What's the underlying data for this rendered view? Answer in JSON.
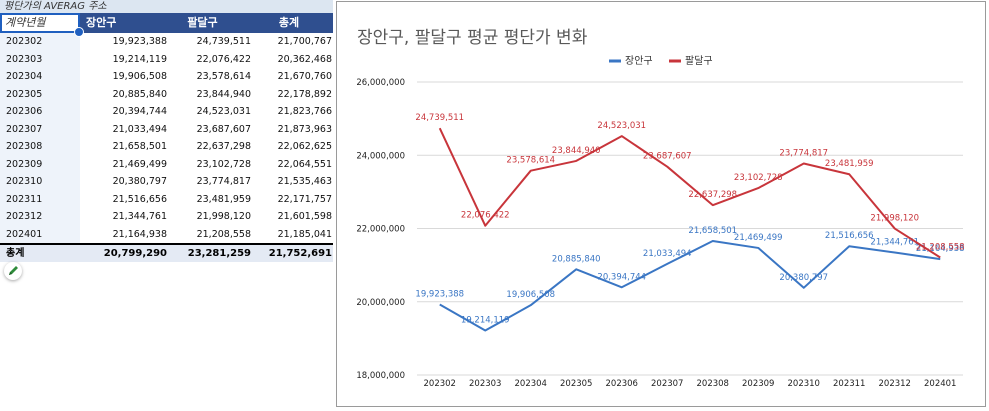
{
  "pivot": {
    "title": "평단가의 AVERAG 주소",
    "headers": [
      "계약년월",
      "장안구",
      "팔달구",
      "총계"
    ],
    "rows": [
      [
        "202302",
        "19,923,388",
        "24,739,511",
        "21,700,767"
      ],
      [
        "202303",
        "19,214,119",
        "22,076,422",
        "20,362,468"
      ],
      [
        "202304",
        "19,906,508",
        "23,578,614",
        "21,670,760"
      ],
      [
        "202305",
        "20,885,840",
        "23,844,940",
        "22,178,892"
      ],
      [
        "202306",
        "20,394,744",
        "24,523,031",
        "21,823,766"
      ],
      [
        "202307",
        "21,033,494",
        "23,687,607",
        "21,873,963"
      ],
      [
        "202308",
        "21,658,501",
        "22,637,298",
        "22,062,625"
      ],
      [
        "202309",
        "21,469,499",
        "23,102,728",
        "22,064,551"
      ],
      [
        "202310",
        "20,380,797",
        "23,774,817",
        "21,535,463"
      ],
      [
        "202311",
        "21,516,656",
        "23,481,959",
        "22,171,757"
      ],
      [
        "202312",
        "21,344,761",
        "21,998,120",
        "21,601,598"
      ],
      [
        "202401",
        "21,164,938",
        "21,208,558",
        "21,185,041"
      ]
    ],
    "total": [
      "총계",
      "20,799,290",
      "23,281,259",
      "21,752,691"
    ]
  },
  "chart_data": {
    "type": "line",
    "title": "장안구, 팔달구 평균 평단가 변화",
    "categories": [
      "202302",
      "202303",
      "202304",
      "202305",
      "202306",
      "202307",
      "202308",
      "202309",
      "202310",
      "202311",
      "202312",
      "202401"
    ],
    "series": [
      {
        "name": "장안구",
        "color": "#3a76c4",
        "values": [
          19923388,
          19214119,
          19906508,
          20885840,
          20394744,
          21033494,
          21658501,
          21469499,
          20380797,
          21516656,
          21344761,
          21164938
        ],
        "labels": [
          "19,923,388",
          "19,214,119",
          "19,906,508",
          "20,885,840",
          "20,394,744",
          "21,033,494",
          "21,658,501",
          "21,469,499",
          "20,380,797",
          "21,516,656",
          "21,344,761",
          "21,164,938"
        ]
      },
      {
        "name": "팔달구",
        "color": "#c8353b",
        "values": [
          24739511,
          22076422,
          23578614,
          23844940,
          24523031,
          23687607,
          22637298,
          23102728,
          23774817,
          23481959,
          21998120,
          21208558
        ],
        "labels": [
          "24,739,511",
          "22,076,422",
          "23,578,614",
          "23,844,940",
          "24,523,031",
          "23,687,607",
          "22,637,298",
          "23,102,728",
          "23,774,817",
          "23,481,959",
          "21,998,120",
          "21,208,558"
        ]
      }
    ],
    "yticks": [
      18000000,
      20000000,
      22000000,
      24000000,
      26000000
    ],
    "ytick_labels": [
      "18,000,000",
      "20,000,000",
      "22,000,000",
      "24,000,000",
      "26,000,000"
    ],
    "ylim": [
      18000000,
      26000000
    ],
    "legend_position": "top",
    "grid": true
  }
}
